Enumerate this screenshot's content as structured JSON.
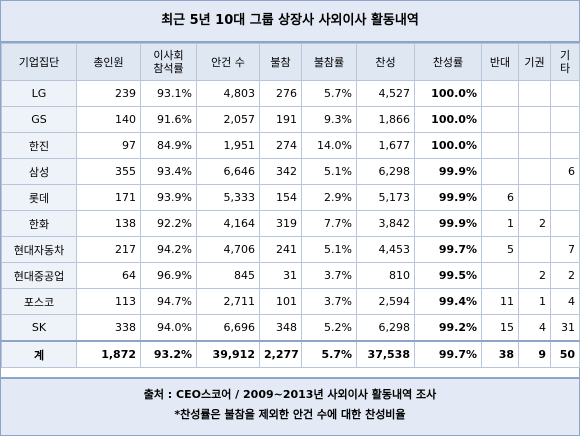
{
  "header": {
    "title": "최근 5년 10대 그룹 상장사 사외이사 활동내역"
  },
  "table": {
    "columns": [
      "기업집단",
      "총인원",
      "이사회\n참석률",
      "안건 수",
      "불참",
      "불참률",
      "찬성",
      "찬성률",
      "반대",
      "기권",
      "기타"
    ],
    "rows": [
      [
        "LG",
        "239",
        "93.1%",
        "4,803",
        "276",
        "5.7%",
        "4,527",
        "100.0%",
        null,
        null,
        null
      ],
      [
        "GS",
        "140",
        "91.6%",
        "2,057",
        "191",
        "9.3%",
        "1,866",
        "100.0%",
        null,
        null,
        null
      ],
      [
        "한진",
        "97",
        "84.9%",
        "1,951",
        "274",
        "14.0%",
        "1,677",
        "100.0%",
        null,
        null,
        null
      ],
      [
        "삼성",
        "355",
        "93.4%",
        "6,646",
        "342",
        "5.1%",
        "6,298",
        "99.9%",
        null,
        null,
        "6"
      ],
      [
        "롯데",
        "171",
        "93.9%",
        "5,333",
        "154",
        "2.9%",
        "5,173",
        "99.9%",
        "6",
        null,
        null
      ],
      [
        "한화",
        "138",
        "92.2%",
        "4,164",
        "319",
        "7.7%",
        "3,842",
        "99.9%",
        "1",
        "2",
        null
      ],
      [
        "현대자동차",
        "217",
        "94.2%",
        "4,706",
        "241",
        "5.1%",
        "4,453",
        "99.7%",
        "5",
        null,
        "7"
      ],
      [
        "현대중공업",
        "64",
        "96.9%",
        "845",
        "31",
        "3.7%",
        "810",
        "99.5%",
        null,
        "2",
        "2"
      ],
      [
        "포스코",
        "113",
        "94.7%",
        "2,711",
        "101",
        "3.7%",
        "2,594",
        "99.4%",
        "11",
        "1",
        "4"
      ],
      [
        "SK",
        "338",
        "94.0%",
        "6,696",
        "348",
        "5.2%",
        "6,298",
        "99.2%",
        "15",
        "4",
        "31"
      ]
    ],
    "total": [
      "계",
      "1,872",
      "93.2%",
      "39,912",
      "2,277",
      "5.7%",
      "37,538",
      "99.7%",
      "38",
      "9",
      "50"
    ]
  },
  "footer": {
    "source": "출처 : CEO스코어 / 2009~2013년 사외이사 활동내역 조사",
    "note": "*찬성률은 불참을 제외한 안건 수에 대한 찬성비율"
  }
}
